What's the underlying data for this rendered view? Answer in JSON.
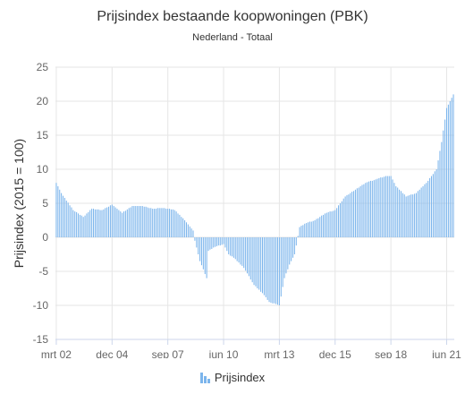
{
  "chart_data": {
    "type": "bar",
    "title": "Prijsindex bestaande koopwoningen (PBK)",
    "subtitle": "Nederland - Totaal",
    "ylabel": "Prijsindex (2015 = 100)",
    "xlabel": "",
    "ylim": [
      -15,
      25
    ],
    "yticks": [
      25,
      20,
      15,
      10,
      5,
      0,
      -5,
      -10,
      -15
    ],
    "xtick_labels": [
      "mrt 02",
      "dec 04",
      "sep 07",
      "jun 10",
      "mrt 13",
      "dec 15",
      "sep 18",
      "jun 21"
    ],
    "grid": true,
    "legend_position": "bottom-center",
    "series": [
      {
        "name": "Prijsindex",
        "color": "#7cb5ec",
        "start_month": "mrt 02",
        "frequency": "monthly",
        "anchors": [
          [
            "mrt 02",
            8.0
          ],
          [
            "jun 02",
            6.5
          ],
          [
            "jan 03",
            4.0
          ],
          [
            "jul 03",
            3.0
          ],
          [
            "dec 03",
            4.2
          ],
          [
            "jun 04",
            4.0
          ],
          [
            "dec 04",
            4.8
          ],
          [
            "jun 05",
            3.6
          ],
          [
            "dec 05",
            4.6
          ],
          [
            "jun 06",
            4.6
          ],
          [
            "dec 06",
            4.2
          ],
          [
            "jun 07",
            4.3
          ],
          [
            "sep 07",
            4.2
          ],
          [
            "jan 08",
            4.0
          ],
          [
            "jun 08",
            2.8
          ],
          [
            "dec 08",
            1.0
          ],
          [
            "jan 09",
            -0.5
          ],
          [
            "apr 09",
            -3.5
          ],
          [
            "aug 09",
            -6.0
          ],
          [
            "sep 09",
            -2.0
          ],
          [
            "dec 09",
            -1.5
          ],
          [
            "jun 10",
            -1.0
          ],
          [
            "sep 10",
            -2.5
          ],
          [
            "dec 10",
            -3.0
          ],
          [
            "jun 11",
            -4.5
          ],
          [
            "dec 11",
            -7.0
          ],
          [
            "jun 12",
            -8.5
          ],
          [
            "sep 12",
            -9.5
          ],
          [
            "mrt 13",
            -10.0
          ],
          [
            "jun 13",
            -6.0
          ],
          [
            "sep 13",
            -4.0
          ],
          [
            "dec 13",
            -2.5
          ],
          [
            "mrt 14",
            1.5
          ],
          [
            "jun 14",
            2.0
          ],
          [
            "dec 14",
            2.5
          ],
          [
            "jun 15",
            3.5
          ],
          [
            "dec 15",
            4.0
          ],
          [
            "jun 16",
            6.0
          ],
          [
            "dec 16",
            7.0
          ],
          [
            "jun 17",
            8.0
          ],
          [
            "dec 17",
            8.5
          ],
          [
            "jun 18",
            9.0
          ],
          [
            "sep 18",
            9.0
          ],
          [
            "dec 18",
            7.5
          ],
          [
            "jun 19",
            6.0
          ],
          [
            "dec 19",
            6.5
          ],
          [
            "jun 20",
            8.0
          ],
          [
            "dec 20",
            10.0
          ],
          [
            "mrt 21",
            14.0
          ],
          [
            "jun 21",
            19.0
          ],
          [
            "okt 21",
            21.0
          ]
        ]
      }
    ]
  }
}
